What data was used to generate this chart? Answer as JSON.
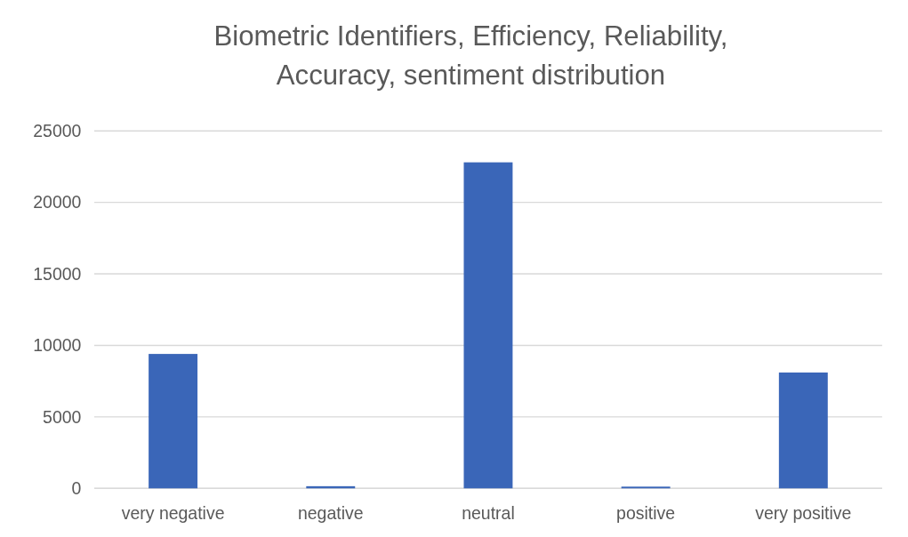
{
  "chart_data": {
    "type": "bar",
    "title": "Biometric Identifiers, Efficiency, Reliability, Accuracy, sentiment distribution",
    "categories": [
      "very negative",
      "negative",
      "neutral",
      "positive",
      "very positive"
    ],
    "values": [
      9400,
      150,
      22800,
      120,
      8100
    ],
    "color": "#3a66b8",
    "ylim": [
      0,
      25000
    ],
    "yticks": [
      0,
      5000,
      10000,
      15000,
      20000,
      25000
    ],
    "grid": "y"
  }
}
